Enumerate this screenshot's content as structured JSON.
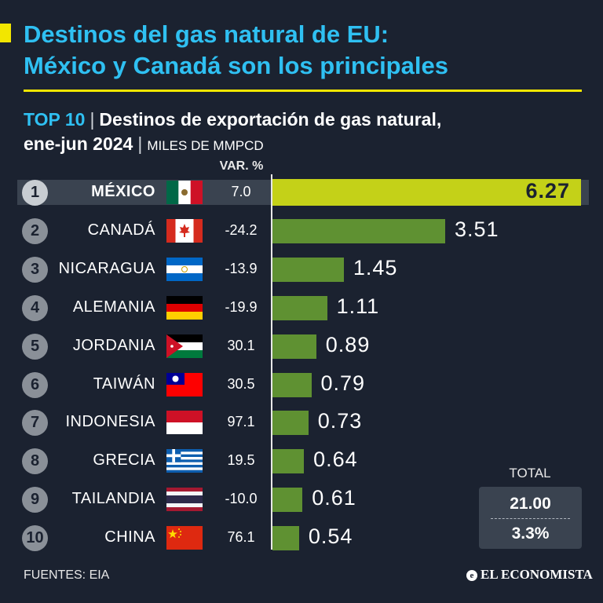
{
  "header": {
    "title_line1": "Destinos del gas natural de EU:",
    "title_line2": "México y Canadá son los principales",
    "subtitle_top": "TOP 10",
    "subtitle_sep": "|",
    "subtitle_main": "Destinos de exportación de gas natural,",
    "subtitle_period": "ene-jun 2024",
    "subtitle_units": "MILES DE MMPCD"
  },
  "columns": {
    "variation_header": "VAR. %"
  },
  "chart_data": {
    "type": "bar",
    "orientation": "horizontal",
    "title": "Destinos de exportación de gas natural, ene-jun 2024",
    "units": "MILES DE MMPCD",
    "categories": [
      "MÉXICO",
      "CANADÁ",
      "NICARAGUA",
      "ALEMANIA",
      "JORDANIA",
      "TAIWÁN",
      "INDONESIA",
      "GRECIA",
      "TAILANDIA",
      "CHINA"
    ],
    "ranks": [
      "1",
      "2",
      "3",
      "4",
      "5",
      "6",
      "7",
      "8",
      "9",
      "10"
    ],
    "values": [
      6.27,
      3.51,
      1.45,
      1.11,
      0.89,
      0.79,
      0.73,
      0.64,
      0.61,
      0.54
    ],
    "value_labels": [
      "6.27",
      "3.51",
      "1.45",
      "1.11",
      "0.89",
      "0.79",
      "0.73",
      "0.64",
      "0.61",
      "0.54"
    ],
    "variation_pct": [
      "7.0",
      "-24.2",
      "-13.9",
      "-19.9",
      "30.1",
      "30.5",
      "97.1",
      "19.5",
      "-10.0",
      "76.1"
    ],
    "flags": [
      "mexico-flag",
      "canada-flag",
      "nicaragua-flag",
      "germany-flag",
      "jordan-flag",
      "taiwan-flag",
      "indonesia-flag",
      "greece-flag",
      "thailand-flag",
      "china-flag"
    ],
    "xlim": [
      0,
      6.27
    ],
    "highlight_index": 0
  },
  "total": {
    "label": "TOTAL",
    "value": "21.00",
    "variation": "3.3%"
  },
  "footer": {
    "source": "FUENTES: EIA",
    "brand": "EL ECONOMISTA"
  },
  "colors": {
    "background": "#1b2230",
    "title": "#2fc0f2",
    "accent": "#f2e600",
    "bar": "#5f9132",
    "bar_highlight": "#c4d118"
  }
}
